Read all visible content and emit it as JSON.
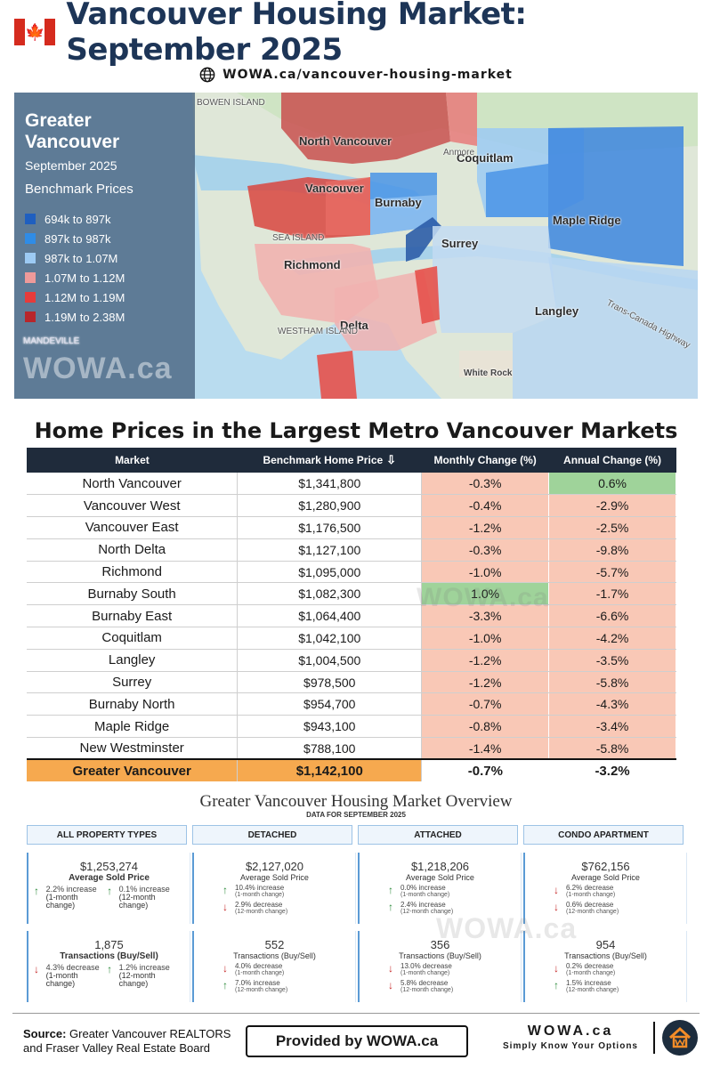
{
  "header": {
    "title": "Vancouver Housing Market: September 2025",
    "url": "WOWA.ca/vancouver-housing-market"
  },
  "map": {
    "panel_title": "Greater Vancouver",
    "panel_date": "September 2025",
    "panel_heading": "Benchmark Prices",
    "legend": [
      {
        "label": "694k to 897k",
        "color": "#1f5fbf"
      },
      {
        "label": "897k to 987k",
        "color": "#2f8ce6"
      },
      {
        "label": "987k to 1.07M",
        "color": "#9ccaf3"
      },
      {
        "label": "1.07M to 1.12M",
        "color": "#ee9a9a"
      },
      {
        "label": "1.12M to 1.19M",
        "color": "#e63b3b"
      },
      {
        "label": "1.19M to 2.38M",
        "color": "#b8262b"
      }
    ],
    "watermark": "WOWA.ca",
    "places": {
      "north_vancouver": "North Vancouver",
      "vancouver": "Vancouver",
      "burnaby": "Burnaby",
      "coquitlam": "Coquitlam",
      "maple_ridge": "Maple Ridge",
      "surrey": "Surrey",
      "richmond": "Richmond",
      "delta": "Delta",
      "langley": "Langley",
      "white_rock": "White Rock",
      "anmore": "Anmore",
      "sea_island": "SEA ISLAND",
      "westham_island": "WESTHAM ISLAND",
      "trans_canada": "Trans-Canada Highway",
      "bowen_island": "BOWEN ISLAND",
      "mandeville": "MANDEVILLE"
    }
  },
  "prices_table": {
    "title": "Home Prices in the Largest Metro Vancouver Markets",
    "headers": {
      "market": "Market",
      "price": "Benchmark Home Price",
      "monthly": "Monthly Change (%)",
      "annual": "Annual Change (%)"
    },
    "rows": [
      {
        "market": "North Vancouver",
        "price": "$1,341,800",
        "monthly": "-0.3%",
        "annual": "0.6%"
      },
      {
        "market": "Vancouver West",
        "price": "$1,280,900",
        "monthly": "-0.4%",
        "annual": "-2.9%"
      },
      {
        "market": "Vancouver East",
        "price": "$1,176,500",
        "monthly": "-1.2%",
        "annual": "-2.5%"
      },
      {
        "market": "North Delta",
        "price": "$1,127,100",
        "monthly": "-0.3%",
        "annual": "-9.8%"
      },
      {
        "market": "Richmond",
        "price": "$1,095,000",
        "monthly": "-1.0%",
        "annual": "-5.7%"
      },
      {
        "market": "Burnaby South",
        "price": "$1,082,300",
        "monthly": "1.0%",
        "annual": "-1.7%"
      },
      {
        "market": "Burnaby East",
        "price": "$1,064,400",
        "monthly": "-3.3%",
        "annual": "-6.6%"
      },
      {
        "market": "Coquitlam",
        "price": "$1,042,100",
        "monthly": "-1.0%",
        "annual": "-4.2%"
      },
      {
        "market": "Langley",
        "price": "$1,004,500",
        "monthly": "-1.2%",
        "annual": "-3.5%"
      },
      {
        "market": "Surrey",
        "price": "$978,500",
        "monthly": "-1.2%",
        "annual": "-5.8%"
      },
      {
        "market": "Burnaby North",
        "price": "$954,700",
        "monthly": "-0.7%",
        "annual": "-4.3%"
      },
      {
        "market": "Maple Ridge",
        "price": "$943,100",
        "monthly": "-0.8%",
        "annual": "-3.4%"
      },
      {
        "market": "New Westminster",
        "price": "$788,100",
        "monthly": "-1.4%",
        "annual": "-5.8%"
      }
    ],
    "total": {
      "market": "Greater Vancouver",
      "price": "$1,142,100",
      "monthly": "-0.7%",
      "annual": "-3.2%"
    },
    "watermark": "WOWA.ca"
  },
  "overview": {
    "title": "Greater Vancouver Housing Market Overview",
    "subtitle": "DATA FOR SEPTEMBER 2025",
    "categories": [
      "ALL PROPERTY TYPES",
      "DETACHED",
      "ATTACHED",
      "CONDO APARTMENT"
    ],
    "watermark": "WOWA.ca",
    "sold_price": [
      {
        "value": "$1,253,274",
        "label": "Average Sold Price",
        "c1": "2.2% increase",
        "c1s": "(1-month change)",
        "c1dir": "up",
        "c2": "0.1% increase",
        "c2s": "(12-month change)",
        "c2dir": "up"
      },
      {
        "value": "$2,127,020",
        "label": "Average Sold Price",
        "c1": "10.4% increase",
        "c1s": "(1-month change)",
        "c1dir": "up",
        "c2": "2.9% decrease",
        "c2s": "(12-month change)",
        "c2dir": "down"
      },
      {
        "value": "$1,218,206",
        "label": "Average Sold Price",
        "c1": "0.0% increase",
        "c1s": "(1-month change)",
        "c1dir": "up",
        "c2": "2.4% increase",
        "c2s": "(12-month change)",
        "c2dir": "up"
      },
      {
        "value": "$762,156",
        "label": "Average Sold Price",
        "c1": "6.2% decrease",
        "c1s": "(1-month change)",
        "c1dir": "down",
        "c2": "0.6% decrease",
        "c2s": "(12-month change)",
        "c2dir": "down"
      }
    ],
    "transactions": [
      {
        "value": "1,875",
        "label": "Transactions (Buy/Sell)",
        "c1": "4.3% decrease",
        "c1s": "(1-month change)",
        "c1dir": "down",
        "c2": "1.2% increase",
        "c2s": "(12-month change)",
        "c2dir": "up"
      },
      {
        "value": "552",
        "label": "Transactions (Buy/Sell)",
        "c1": "4.0% decrease",
        "c1s": "(1-month change)",
        "c1dir": "down",
        "c2": "7.0% increase",
        "c2s": "(12-month change)",
        "c2dir": "up"
      },
      {
        "value": "356",
        "label": "Transactions (Buy/Sell)",
        "c1": "13.0% decrease",
        "c1s": "(1-month change)",
        "c1dir": "down",
        "c2": "5.8% decrease",
        "c2s": "(12-month change)",
        "c2dir": "down"
      },
      {
        "value": "954",
        "label": "Transactions (Buy/Sell)",
        "c1": "0.2% decrease",
        "c1s": "(1-month change)",
        "c1dir": "down",
        "c2": "1.5% increase",
        "c2s": "(12-month change)",
        "c2dir": "up"
      }
    ]
  },
  "footer": {
    "source_label": "Source:",
    "source_line1": "Greater Vancouver REALTORS",
    "source_line2": "and Fraser Valley Real Estate Board",
    "provided": "Provided by WOWA.ca",
    "brand": "WOWA.ca",
    "tagline": "Simply Know Your Options"
  },
  "colors": {
    "header_title": "#1d3557",
    "table_header": "#1f2b3b",
    "negative": "#f9c8b6",
    "positive": "#9fd39a",
    "total_row": "#f6a94f",
    "up_arrow": "#2e8b3c",
    "down_arrow": "#c62828"
  },
  "icons": [
    "canada-flag-icon",
    "globe-icon",
    "sort-desc-icon",
    "arrow-up-icon",
    "arrow-down-icon",
    "wowa-house-logo-icon"
  ]
}
